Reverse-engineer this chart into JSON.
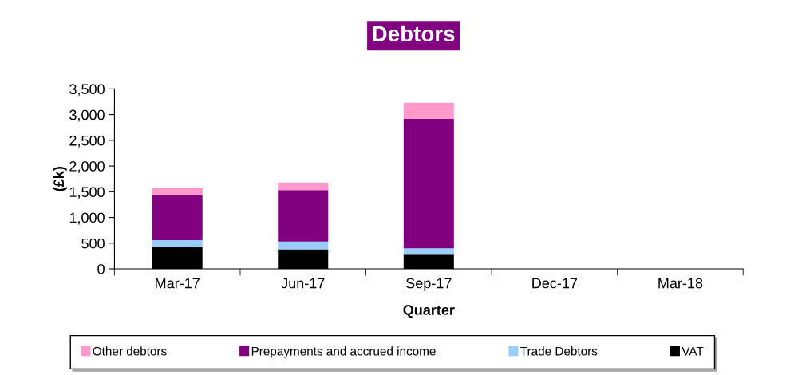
{
  "chart_data": {
    "type": "bar",
    "title": "Debtors",
    "xlabel": "Quarter",
    "ylabel": "(£k)",
    "stacked": true,
    "categories": [
      "Mar-17",
      "Jun-17",
      "Sep-17",
      "Dec-17",
      "Mar-18"
    ],
    "series": [
      {
        "name": "VAT",
        "color": "#000000",
        "values": [
          420,
          380,
          290,
          null,
          null
        ]
      },
      {
        "name": "Trade Debtors",
        "color": "#99ccff",
        "values": [
          140,
          150,
          110,
          null,
          null
        ]
      },
      {
        "name": "Prepayments and accrued income",
        "color": "#800080",
        "values": [
          870,
          1000,
          2520,
          null,
          null
        ]
      },
      {
        "name": "Other debtors",
        "color": "#ff99cc",
        "values": [
          140,
          150,
          310,
          null,
          null
        ]
      }
    ],
    "ylim": [
      0,
      3500
    ],
    "yticks": [
      0,
      {
        "value": 500,
        "label": "500"
      },
      {
        "value": 1000,
        "label": "1,000"
      },
      {
        "value": 1500,
        "label": "1,500"
      },
      {
        "value": 2000,
        "label": "2,000"
      },
      {
        "value": 2500,
        "label": "2,500"
      },
      {
        "value": 3000,
        "label": "3,000"
      },
      {
        "value": 3500,
        "label": "3,500"
      }
    ],
    "grid": false,
    "legend": "bottom"
  }
}
